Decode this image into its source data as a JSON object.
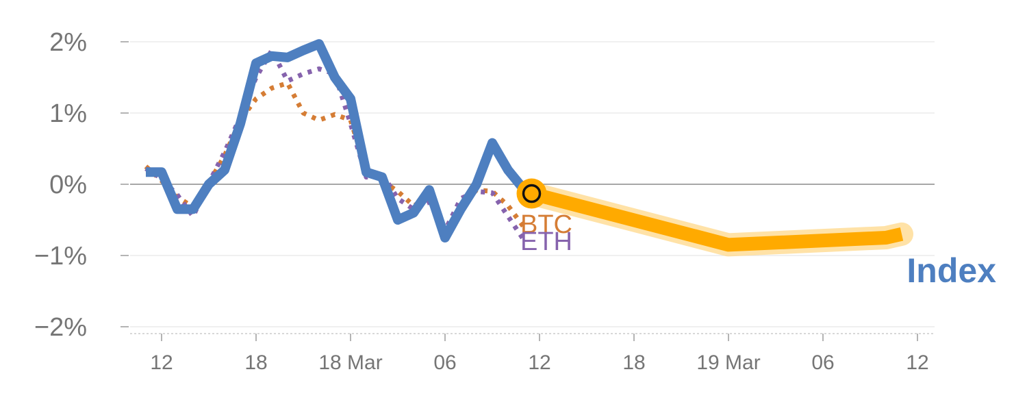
{
  "chart_data": {
    "type": "line",
    "title": "",
    "xlabel": "",
    "ylabel": "",
    "ylim": [
      -2,
      2
    ],
    "y_ticks": [
      {
        "value": 2,
        "label": "2%"
      },
      {
        "value": 1,
        "label": "1%"
      },
      {
        "value": 0,
        "label": "0%"
      },
      {
        "value": -1,
        "label": "−1%"
      },
      {
        "value": -2,
        "label": "−2%"
      }
    ],
    "x_unit": "hours from 17 Mar 12:00",
    "xlim": [
      -1.0,
      47.3
    ],
    "x_ticks": [
      {
        "value": 0,
        "label": "12"
      },
      {
        "value": 6,
        "label": "18"
      },
      {
        "value": 12,
        "label": "18 Mar"
      },
      {
        "value": 18,
        "label": "06"
      },
      {
        "value": 24,
        "label": "12"
      },
      {
        "value": 30,
        "label": "18"
      },
      {
        "value": 36,
        "label": "19 Mar"
      },
      {
        "value": 42,
        "label": "06"
      },
      {
        "value": 48,
        "label": "12"
      }
    ],
    "series": [
      {
        "name": "Index",
        "color": "#4e7fc0",
        "style": "solid",
        "x": [
          -1,
          0,
          1,
          2,
          3,
          4,
          5,
          6,
          7,
          8,
          9,
          10,
          11,
          12,
          13,
          14,
          15,
          16,
          17,
          18,
          19,
          20,
          21,
          22,
          23
        ],
        "y": [
          0.17,
          0.17,
          -0.35,
          -0.35,
          0.0,
          0.2,
          0.85,
          1.7,
          1.8,
          1.78,
          1.88,
          1.97,
          1.5,
          1.2,
          0.17,
          0.1,
          -0.5,
          -0.4,
          -0.08,
          -0.75,
          -0.35,
          0.0,
          0.58,
          0.2,
          -0.07
        ]
      },
      {
        "name": "BTC",
        "color": "#d57d35",
        "style": "dotted",
        "x": [
          -1,
          0,
          1,
          2,
          3,
          4,
          5,
          6,
          7,
          8,
          9,
          10,
          11,
          12,
          13,
          14,
          15,
          16,
          17,
          18,
          19,
          20,
          21,
          22,
          23
        ],
        "y": [
          0.25,
          0.05,
          -0.18,
          -0.32,
          0.02,
          0.4,
          0.9,
          1.2,
          1.35,
          1.42,
          1.0,
          0.9,
          0.98,
          0.9,
          0.2,
          0.05,
          -0.1,
          -0.3,
          -0.2,
          -0.75,
          -0.3,
          -0.08,
          -0.1,
          -0.3,
          -0.6
        ]
      },
      {
        "name": "ETH",
        "color": "#8663ad",
        "style": "dotted",
        "x": [
          -1,
          0,
          1,
          2,
          3,
          4,
          5,
          6,
          7,
          8,
          9,
          10,
          11,
          12,
          13,
          14,
          15,
          16,
          17,
          18,
          19,
          20,
          21,
          22,
          23
        ],
        "y": [
          0.22,
          0.08,
          -0.15,
          -0.45,
          0.02,
          0.45,
          0.95,
          1.5,
          1.88,
          1.45,
          1.55,
          1.62,
          1.55,
          0.85,
          0.1,
          0.15,
          -0.2,
          -0.35,
          -0.25,
          -0.65,
          -0.2,
          -0.1,
          -0.12,
          -0.45,
          -0.78
        ]
      },
      {
        "name": "",
        "color": "#ffaa00",
        "style": "thick",
        "x": [
          23.5,
          36,
          46,
          47
        ],
        "y": [
          -0.13,
          -0.85,
          -0.75,
          -0.7
        ]
      }
    ],
    "marker": {
      "x": 23.5,
      "y": -0.13,
      "fill": "#ffaa00"
    },
    "labels": {
      "btc": "BTC",
      "eth": "ETH",
      "index": "Index"
    }
  }
}
